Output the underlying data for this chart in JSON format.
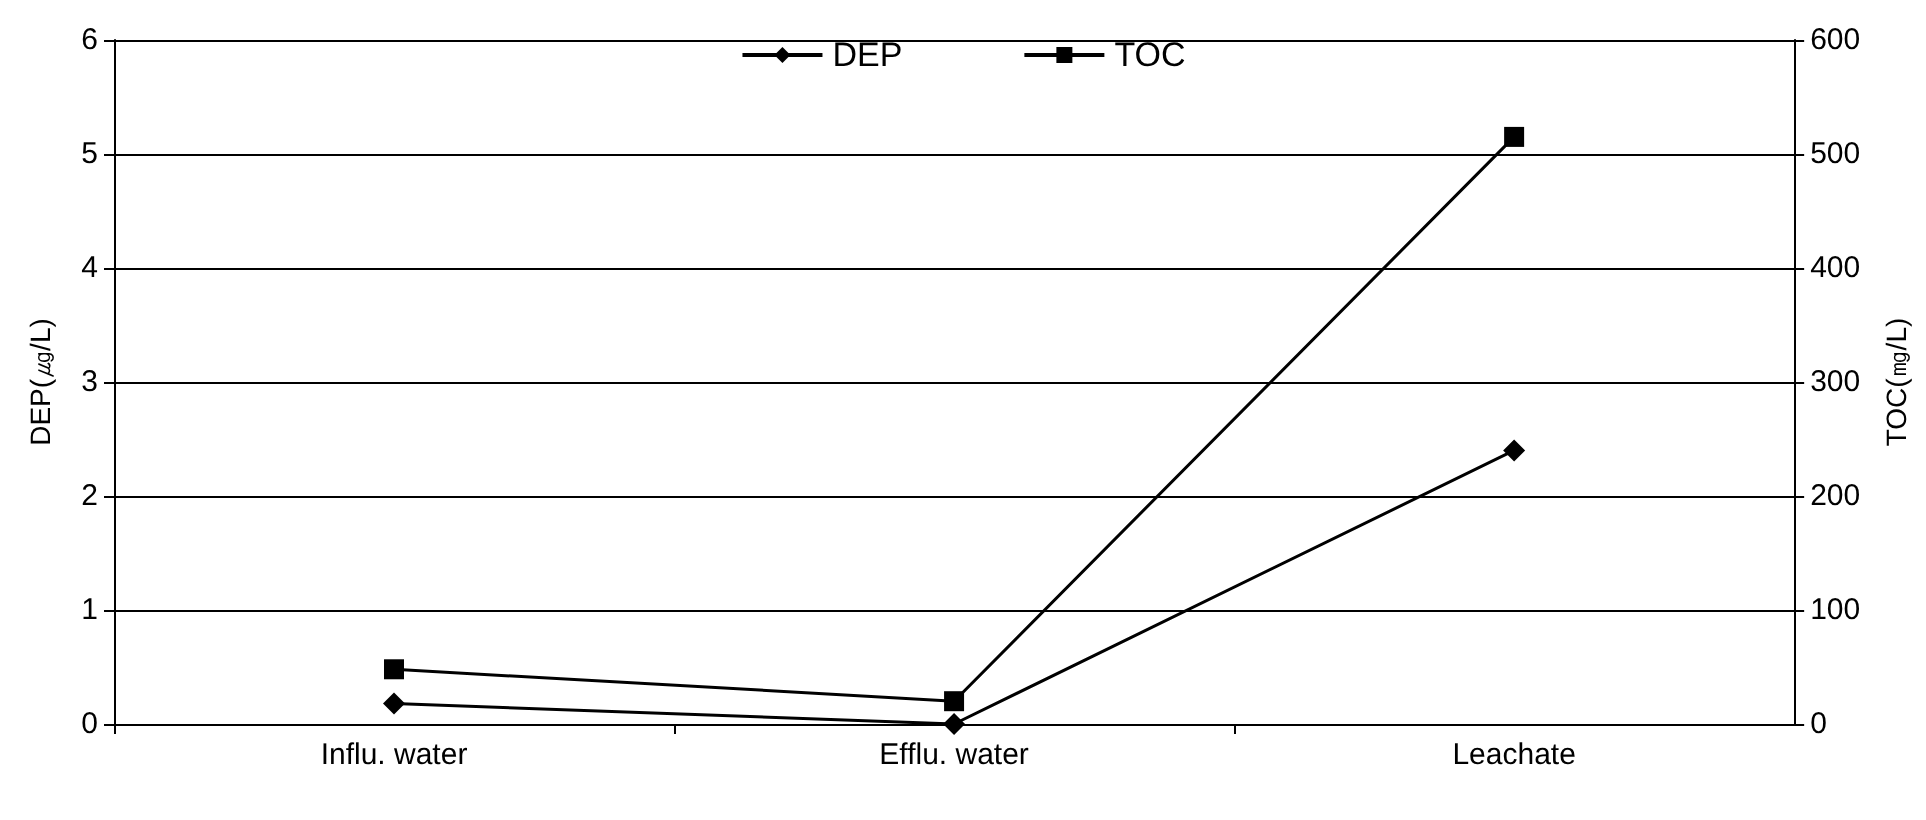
{
  "chart_data": {
    "type": "line",
    "categories": [
      "Influ. water",
      "Efflu. water",
      "Leachate"
    ],
    "series": [
      {
        "name": "DEP",
        "color": "#000000",
        "values": [
          0.18,
          0.0,
          2.4
        ],
        "marker": "diamond"
      },
      {
        "name": "TOC",
        "color": "#000000",
        "values": [
          48,
          20,
          515
        ],
        "marker": "square",
        "axis": "y2"
      }
    ],
    "ylabel": "DEP(㎍/L)",
    "y2label": "TOC(㎎/L)",
    "ylim": [
      0,
      6
    ],
    "yticks": [
      0,
      1,
      2,
      3,
      4,
      5,
      6
    ],
    "y2lim": [
      0,
      600
    ],
    "y2ticks": [
      0,
      100,
      200,
      300,
      400,
      500,
      600
    ],
    "grid": "y",
    "legend": "top",
    "line_style": "solid"
  }
}
